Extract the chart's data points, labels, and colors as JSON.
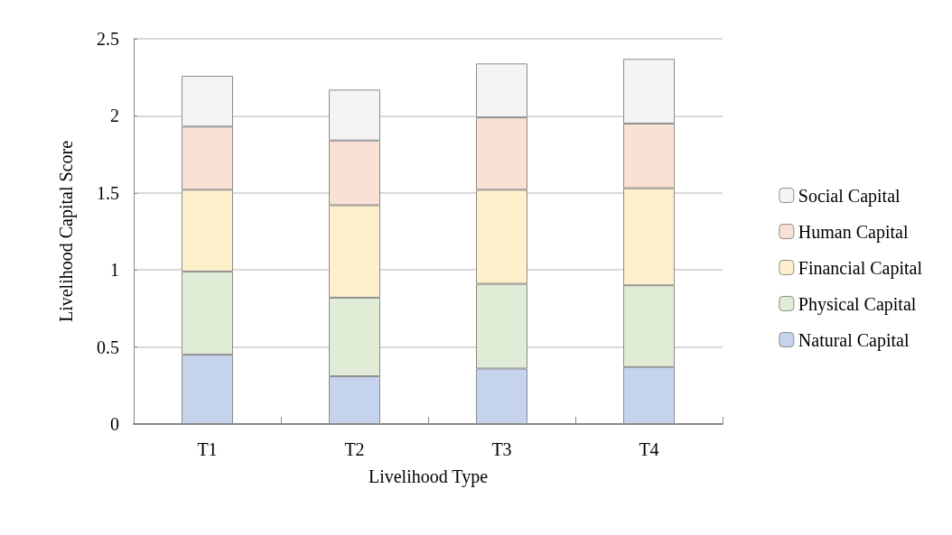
{
  "chart_data": {
    "type": "bar",
    "stacked": true,
    "xlabel": "Livelihood Type",
    "ylabel": "Livelihood Capital Score",
    "categories": [
      "T1",
      "T2",
      "T3",
      "T4"
    ],
    "series": [
      {
        "name": "Natural Capital",
        "color": "#c5d3ec",
        "values": [
          0.45,
          0.31,
          0.36,
          0.37
        ]
      },
      {
        "name": "Physical Capital",
        "color": "#e0ecd6",
        "values": [
          0.54,
          0.51,
          0.55,
          0.53
        ]
      },
      {
        "name": "Financial Capital",
        "color": "#fff0cc",
        "values": [
          0.53,
          0.6,
          0.61,
          0.63
        ]
      },
      {
        "name": "Human Capital",
        "color": "#f9e1d6",
        "values": [
          0.41,
          0.42,
          0.47,
          0.42
        ]
      },
      {
        "name": "Social Capital",
        "color": "#f4f4f4",
        "values": [
          0.33,
          0.33,
          0.35,
          0.42
        ]
      }
    ],
    "ylim": [
      0,
      2.5
    ],
    "yticks": [
      0,
      0.5,
      1,
      1.5,
      2,
      2.5
    ],
    "grid": "y",
    "legend": "right"
  }
}
